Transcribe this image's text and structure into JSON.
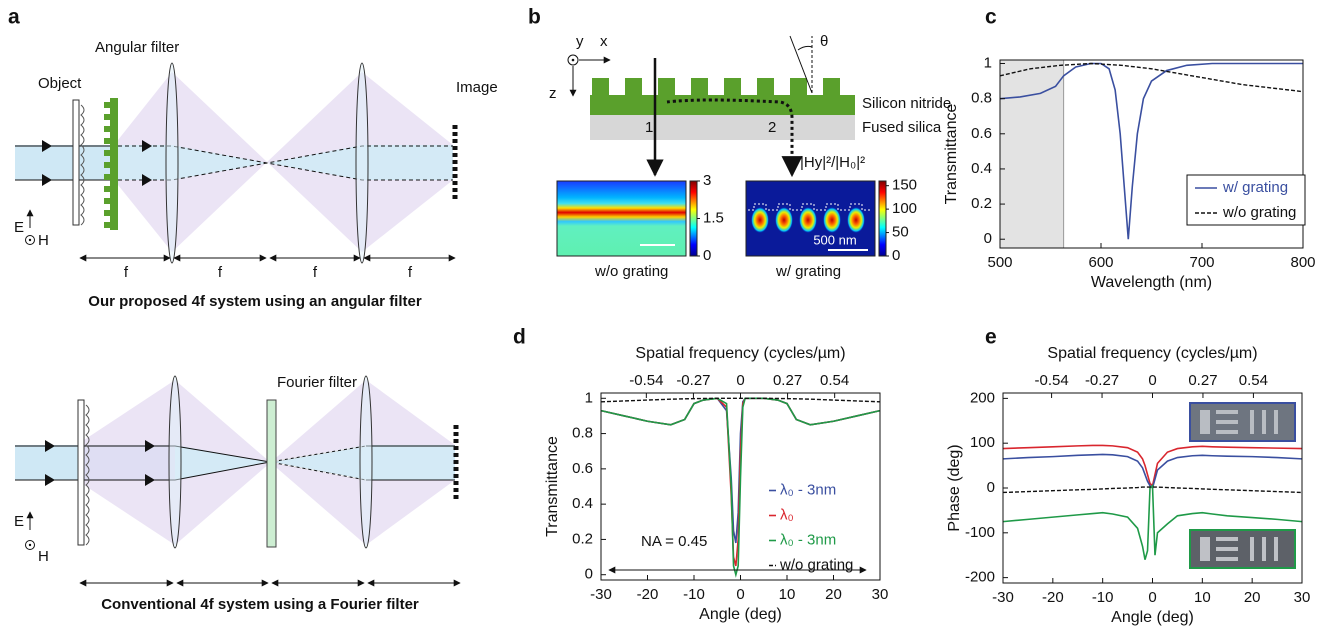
{
  "panels": {
    "a": {
      "label": "a",
      "top_filter": "Angular filter",
      "object": "Object",
      "image": "Image",
      "e1": "E",
      "h1": "H",
      "f_labels": [
        "f",
        "f",
        "f",
        "f"
      ],
      "top_caption": "Our proposed 4f system using an angular filter",
      "bottom_filter": "Fourier filter",
      "e2": "E",
      "h2": "H",
      "bottom_caption": "Conventional 4f system using a Fourier filter"
    },
    "b": {
      "label": "b",
      "axis_y": "y",
      "axis_x": "x",
      "axis_z": "z",
      "theta": "θ",
      "layer_top": "Silicon nitride",
      "layer_bottom": "Fused silica",
      "path_1": "1",
      "path_2": "2",
      "field_label": "|Hy|²/|H₀|²",
      "scale_bar": "500 nm",
      "map_left_caption": "w/o  grating",
      "map_right_caption": "w/  grating",
      "colorbar_left": {
        "lim": [
          0,
          3
        ],
        "ticks": [
          3,
          1.5,
          0
        ]
      },
      "colorbar_right": {
        "lim": [
          0,
          160
        ],
        "ticks": [
          150,
          100,
          50,
          0
        ]
      }
    }
  },
  "chart_data": [
    {
      "type": "line",
      "panel_label": "c",
      "xlabel": "Wavelength (nm)",
      "ylabel": "Transmittance",
      "xlim": [
        500,
        800
      ],
      "ylim": [
        -0.05,
        1.02
      ],
      "xticks": [
        500,
        600,
        700,
        800
      ],
      "yticks": [
        0,
        0.2,
        0.4,
        0.6,
        0.8,
        1
      ],
      "shaded_xrange": [
        500,
        563
      ],
      "legend": "lower right",
      "series": [
        {
          "name": "w/ grating",
          "color": "#3a4fa0",
          "style": "solid",
          "x": [
            500,
            520,
            540,
            555,
            563,
            575,
            590,
            600,
            608,
            614,
            619,
            623,
            627,
            631,
            636,
            642,
            650,
            665,
            685,
            710,
            750,
            800
          ],
          "values": [
            0.8,
            0.81,
            0.83,
            0.87,
            0.93,
            0.98,
            1.0,
            1.0,
            0.97,
            0.85,
            0.6,
            0.3,
            0.0,
            0.3,
            0.6,
            0.8,
            0.9,
            0.96,
            0.99,
            1.0,
            1.0,
            1.0
          ]
        },
        {
          "name": "w/o grating",
          "color": "#111111",
          "style": "dashed",
          "x": [
            500,
            530,
            560,
            590,
            620,
            650,
            680,
            710,
            740,
            770,
            800
          ],
          "values": [
            0.93,
            0.97,
            0.99,
            1.0,
            0.99,
            0.97,
            0.94,
            0.91,
            0.88,
            0.86,
            0.84
          ]
        }
      ]
    },
    {
      "type": "line",
      "panel_label": "d",
      "xlabel": "Angle (deg)",
      "ylabel": "Transmittance",
      "x2label": "Spatial frequency (cycles/µm)",
      "xlim": [
        -30,
        30
      ],
      "ylim": [
        -0.03,
        1.03
      ],
      "x2lim": [
        -0.8,
        0.8
      ],
      "xticks": [
        -30,
        -20,
        -10,
        0,
        10,
        20,
        30
      ],
      "yticks": [
        0,
        0.2,
        0.4,
        0.6,
        0.8,
        1
      ],
      "x2ticks": [
        -0.54,
        -0.27,
        0,
        0.27,
        0.54
      ],
      "annotation": "NA = 0.45",
      "legend": "center right",
      "x": [
        -30,
        -25,
        -20,
        -15,
        -12,
        -10,
        -8,
        -5,
        -3,
        -2,
        -1.5,
        -1,
        -0.5,
        0,
        0.5,
        1,
        3,
        5,
        8,
        10,
        12,
        15,
        20,
        25,
        30
      ],
      "series": [
        {
          "name": "λ₀ - 3nm",
          "color": "#3a4fa0",
          "style": "solid",
          "values": [
            0.93,
            0.9,
            0.87,
            0.85,
            0.88,
            0.97,
            0.99,
            1.0,
            0.93,
            0.55,
            0.25,
            0.18,
            0.35,
            0.8,
            0.98,
            1.0,
            1.0,
            1.0,
            0.99,
            0.97,
            0.88,
            0.85,
            0.87,
            0.9,
            0.93
          ]
        },
        {
          "name": "λ₀",
          "color": "#d9262e",
          "style": "solid",
          "values": [
            0.93,
            0.9,
            0.87,
            0.85,
            0.88,
            0.97,
            0.99,
            1.0,
            0.95,
            0.45,
            0.1,
            0.05,
            0.2,
            0.7,
            0.97,
            1.0,
            1.0,
            1.0,
            0.99,
            0.97,
            0.88,
            0.85,
            0.87,
            0.9,
            0.93
          ]
        },
        {
          "name": "λ₀ - 3nm",
          "color": "#1f9a48",
          "style": "solid",
          "values": [
            0.93,
            0.9,
            0.87,
            0.85,
            0.88,
            0.97,
            0.99,
            1.0,
            0.97,
            0.5,
            0.05,
            0.0,
            0.05,
            0.55,
            0.95,
            1.0,
            1.0,
            1.0,
            0.99,
            0.97,
            0.88,
            0.85,
            0.87,
            0.9,
            0.93
          ]
        },
        {
          "name": "w/o grating",
          "color": "#111111",
          "style": "dashed",
          "values": [
            0.98,
            0.985,
            0.99,
            0.995,
            0.997,
            0.998,
            0.999,
            1,
            1,
            1,
            1,
            1,
            1,
            1,
            1,
            1,
            1,
            1,
            0.999,
            0.998,
            0.997,
            0.995,
            0.99,
            0.985,
            0.98
          ]
        }
      ]
    },
    {
      "type": "line",
      "panel_label": "e",
      "xlabel": "Angle (deg)",
      "ylabel": "Phase (deg)",
      "x2label": "Spatial frequency (cycles/µm)",
      "xlim": [
        -30,
        30
      ],
      "ylim": [
        -212,
        212
      ],
      "x2lim": [
        -0.8,
        0.8
      ],
      "xticks": [
        -30,
        -20,
        -10,
        0,
        10,
        20,
        30
      ],
      "yticks": [
        -200,
        -100,
        0,
        100,
        200
      ],
      "x2ticks": [
        -0.54,
        -0.27,
        0,
        0.27,
        0.54
      ],
      "x": [
        -30,
        -25,
        -20,
        -15,
        -12,
        -10,
        -8,
        -5,
        -3,
        -2,
        -1.5,
        -1,
        -0.5,
        0,
        0.5,
        1,
        3,
        5,
        8,
        10,
        12,
        15,
        20,
        25,
        30
      ],
      "series": [
        {
          "color": "#d9262e",
          "style": "solid",
          "values": [
            88,
            90,
            92,
            94,
            95,
            95,
            94,
            90,
            80,
            65,
            50,
            30,
            10,
            5,
            30,
            55,
            80,
            88,
            92,
            93,
            92,
            91,
            90,
            89,
            88
          ]
        },
        {
          "color": "#3a4fa0",
          "style": "solid",
          "values": [
            65,
            68,
            70,
            73,
            74,
            75,
            74,
            70,
            60,
            45,
            30,
            15,
            5,
            0,
            20,
            40,
            60,
            68,
            72,
            73,
            72,
            71,
            70,
            68,
            65
          ]
        },
        {
          "color": "#1f9a48",
          "style": "solid",
          "values": [
            -75,
            -70,
            -65,
            -60,
            -57,
            -55,
            -58,
            -65,
            -90,
            -130,
            -160,
            -140,
            0,
            5,
            -150,
            -100,
            -80,
            -62,
            -57,
            -55,
            -58,
            -62,
            -66,
            -70,
            -75
          ]
        },
        {
          "color": "#111111",
          "style": "dashed",
          "values": [
            -10,
            -8,
            -6,
            -4,
            -3,
            -2,
            -1,
            0,
            1,
            2,
            2,
            2,
            2,
            2,
            2,
            2,
            1,
            0,
            -1,
            -2,
            -3,
            -4,
            -6,
            -8,
            -10
          ]
        }
      ]
    }
  ]
}
